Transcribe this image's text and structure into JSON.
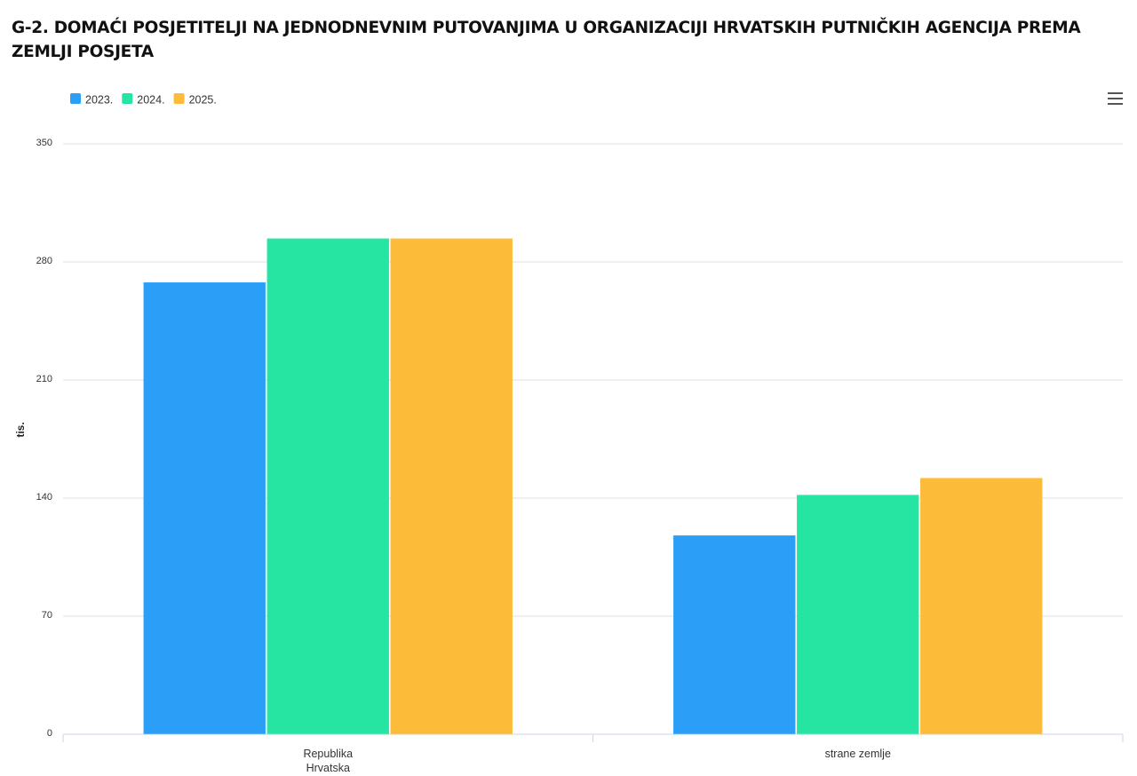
{
  "chart_data": {
    "type": "bar",
    "title": "G-2. DOMAĆI POSJETITELJI NA JEDNODNEVNIM PUTOVANJIMA U ORGANIZACIJI HRVATSKIH PUTNIČKIH AGENCIJA PREMA ZEMLJI POSJETA",
    "y_label": "tis.",
    "categories": [
      "Republika Hrvatska",
      "strane zemlje"
    ],
    "series": [
      {
        "name": "2023.",
        "color": "#2b9ef8",
        "values": [
          267,
          117
        ]
      },
      {
        "name": "2024.",
        "color": "#26e5a3",
        "values": [
          293,
          141
        ]
      },
      {
        "name": "2025.",
        "color": "#fdbb3a",
        "values": [
          293,
          151
        ]
      }
    ],
    "ylim": [
      0,
      350
    ],
    "yticks": [
      0,
      70,
      140,
      210,
      280,
      350
    ],
    "grid": true,
    "legend": "top-left"
  }
}
